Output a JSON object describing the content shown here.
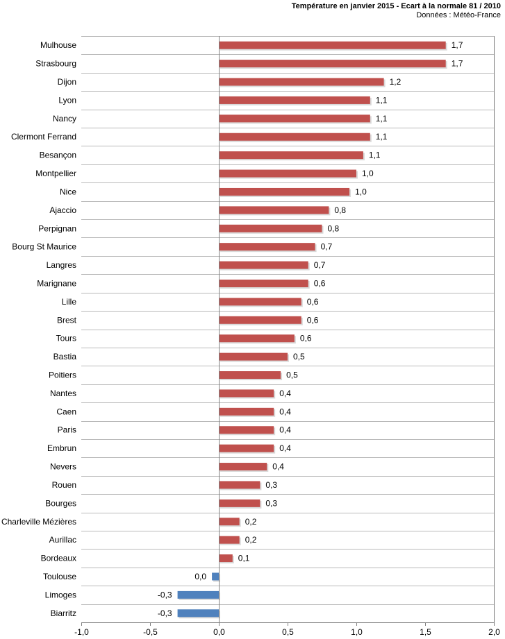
{
  "chart_data": {
    "type": "bar",
    "orientation": "horizontal",
    "title": "Température en janvier 2015 - Ecart à la normale 81 / 2010",
    "subtitle": "Données : Météo-France",
    "categories": [
      "Mulhouse",
      "Strasbourg",
      "Dijon",
      "Lyon",
      "Nancy",
      "Clermont Ferrand",
      "Besançon",
      "Montpellier",
      "Nice",
      "Ajaccio",
      "Perpignan",
      "Bourg St Maurice",
      "Langres",
      "Marignane",
      "Lille",
      "Brest",
      "Tours",
      "Bastia",
      "Poitiers",
      "Nantes",
      "Caen",
      "Paris",
      "Embrun",
      "Nevers",
      "Rouen",
      "Bourges",
      "Charleville Mézières",
      "Aurillac",
      "Bordeaux",
      "Toulouse",
      "Limoges",
      "Biarritz"
    ],
    "values": [
      1.65,
      1.65,
      1.2,
      1.1,
      1.1,
      1.1,
      1.05,
      1.0,
      0.95,
      0.8,
      0.75,
      0.7,
      0.65,
      0.65,
      0.6,
      0.6,
      0.55,
      0.5,
      0.45,
      0.4,
      0.4,
      0.4,
      0.4,
      0.35,
      0.3,
      0.3,
      0.15,
      0.15,
      0.1,
      -0.05,
      -0.3,
      -0.3
    ],
    "labels": [
      "1,7",
      "1,7",
      "1,2",
      "1,1",
      "1,1",
      "1,1",
      "1,1",
      "1,0",
      "1,0",
      "0,8",
      "0,8",
      "0,7",
      "0,7",
      "0,6",
      "0,6",
      "0,6",
      "0,6",
      "0,5",
      "0,5",
      "0,4",
      "0,4",
      "0,4",
      "0,4",
      "0,4",
      "0,3",
      "0,3",
      "0,2",
      "0,2",
      "0,1",
      "0,0",
      "-0,3",
      "-0,3"
    ],
    "xlim": [
      -1.0,
      2.0
    ],
    "xticks": [
      -1.0,
      -0.5,
      0.0,
      0.5,
      1.0,
      1.5,
      2.0
    ],
    "xtick_labels": [
      "-1,0",
      "-0,5",
      "0,0",
      "0,5",
      "1,0",
      "1,5",
      "2,0"
    ],
    "grid": "horizontal",
    "colors": {
      "positive": "#c0504d",
      "negative": "#4f81bd",
      "grid": "#b8b8b8",
      "axis": "#808080",
      "shadow": "#d9d9d9"
    }
  }
}
